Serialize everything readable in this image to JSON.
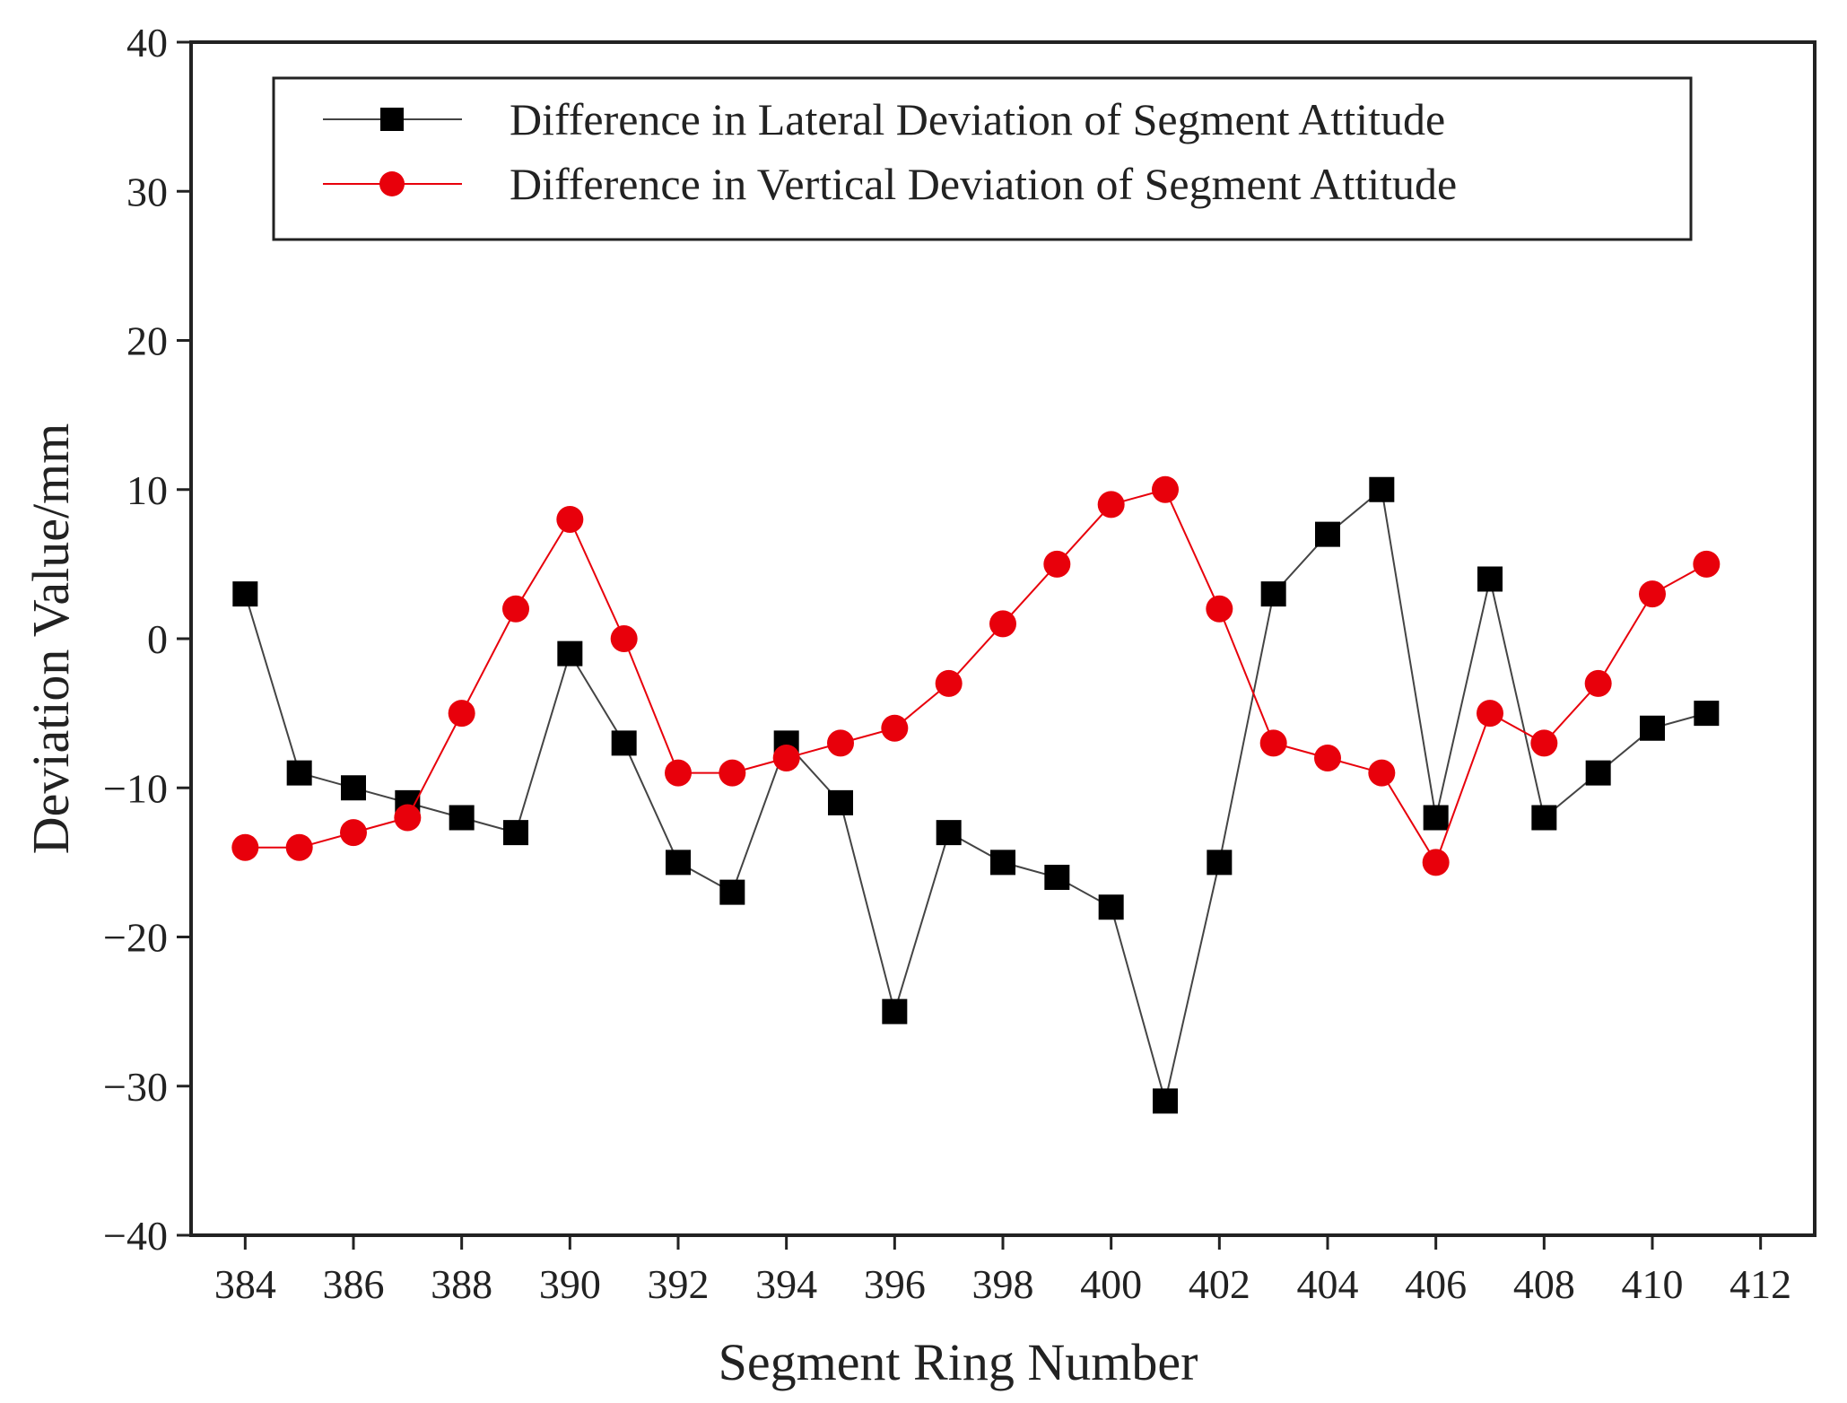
{
  "chart_data": {
    "type": "line",
    "title": "",
    "xlabel": "Segment Ring Number",
    "ylabel": "Deviation Value/mm",
    "xlim": [
      383,
      413
    ],
    "ylim": [
      -40,
      40
    ],
    "x_ticks": [
      384,
      386,
      388,
      390,
      392,
      394,
      396,
      398,
      400,
      402,
      404,
      406,
      408,
      410,
      412
    ],
    "y_ticks": [
      -40,
      -30,
      -20,
      -10,
      0,
      10,
      20,
      30,
      40
    ],
    "y_tick_labels": [
      "−40",
      "−30",
      "−20",
      "−10",
      "0",
      "10",
      "20",
      "30",
      "40"
    ],
    "grid": false,
    "legend_position": "top",
    "x": [
      384,
      385,
      386,
      387,
      388,
      389,
      390,
      391,
      392,
      393,
      394,
      395,
      396,
      397,
      398,
      399,
      400,
      401,
      402,
      403,
      404,
      405,
      406,
      407,
      408,
      409,
      410,
      411
    ],
    "series": [
      {
        "name": "Difference in Lateral Deviation of Segment Attitude",
        "color": "#000000",
        "marker": "square",
        "values": [
          3,
          -9,
          -10,
          -11,
          -12,
          -13,
          -1,
          -7,
          -15,
          -17,
          -7,
          -11,
          -25,
          -13,
          -15,
          -16,
          -18,
          -31,
          -15,
          3,
          7,
          10,
          -12,
          4,
          -12,
          -9,
          -6,
          -5
        ]
      },
      {
        "name": "Difference in Vertical Deviation of Segment Attitude",
        "color": "#e8000b",
        "marker": "circle",
        "values": [
          -14,
          -14,
          -13,
          -12,
          -5,
          2,
          8,
          0,
          -9,
          -9,
          -8,
          -7,
          -6,
          -3,
          1,
          5,
          9,
          10,
          2,
          -7,
          -8,
          -9,
          -15,
          -5,
          -7,
          -3,
          3,
          5
        ]
      }
    ]
  }
}
